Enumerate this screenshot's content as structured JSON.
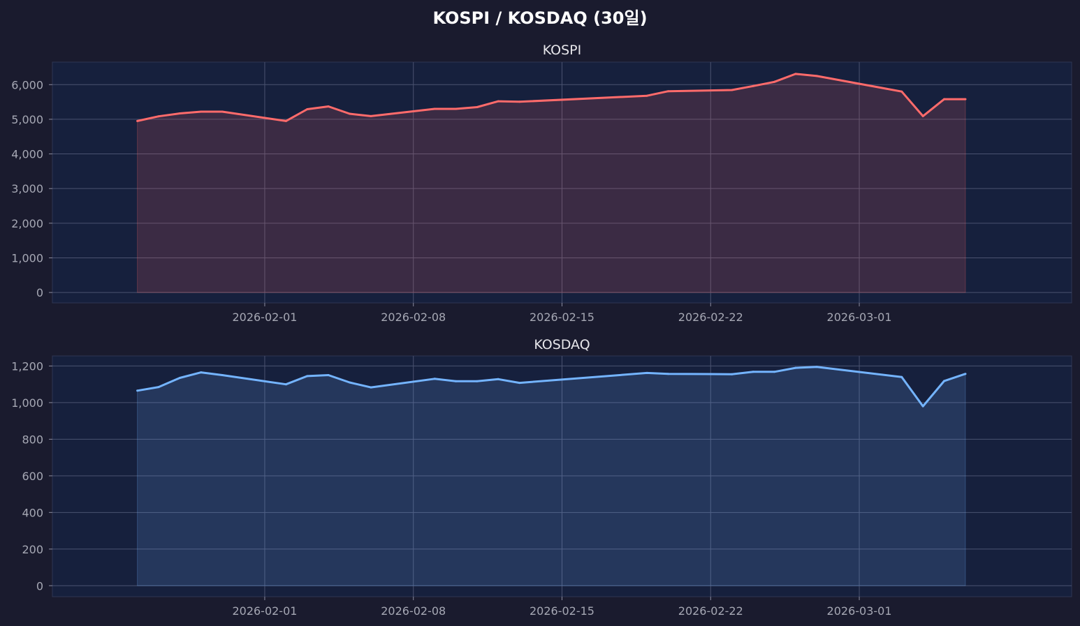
{
  "figure": {
    "title": "KOSPI / KOSDAQ (30일)",
    "background": "#1a1b2e",
    "plot_background": "#16203d"
  },
  "chart_data": [
    {
      "type": "area",
      "title": "KOSPI",
      "color": "#ff6b6b",
      "xlabel": "",
      "ylabel": "",
      "grid": true,
      "xlim": [
        "2026-01-22",
        "2026-03-11"
      ],
      "ylim": [
        -300,
        6650
      ],
      "x_ticks": [
        "2026-02-01",
        "2026-02-08",
        "2026-02-15",
        "2026-02-22",
        "2026-03-01"
      ],
      "y_ticks": [
        0,
        1000,
        2000,
        3000,
        4000,
        5000,
        6000
      ],
      "y_tick_labels": [
        "0",
        "1,000",
        "2,000",
        "3,000",
        "4,000",
        "5,000",
        "6,000"
      ],
      "x": [
        "2026-01-26",
        "2026-01-27",
        "2026-01-28",
        "2026-01-29",
        "2026-01-30",
        "2026-02-02",
        "2026-02-03",
        "2026-02-04",
        "2026-02-05",
        "2026-02-06",
        "2026-02-09",
        "2026-02-10",
        "2026-02-11",
        "2026-02-12",
        "2026-02-13",
        "2026-02-19",
        "2026-02-20",
        "2026-02-23",
        "2026-02-24",
        "2026-02-25",
        "2026-02-26",
        "2026-02-27",
        "2026-03-03",
        "2026-03-04",
        "2026-03-05",
        "2026-03-06"
      ],
      "values": [
        4950,
        5085,
        5170,
        5220,
        5220,
        4950,
        5290,
        5370,
        5160,
        5090,
        5300,
        5300,
        5350,
        5520,
        5505,
        5680,
        5810,
        5845,
        5960,
        6080,
        6310,
        6250,
        5800,
        5090,
        5580,
        5580
      ]
    },
    {
      "type": "area",
      "title": "KOSDAQ",
      "color": "#74b4ff",
      "xlabel": "",
      "ylabel": "",
      "grid": true,
      "xlim": [
        "2026-01-22",
        "2026-03-11"
      ],
      "ylim": [
        -60,
        1255
      ],
      "x_ticks": [
        "2026-02-01",
        "2026-02-08",
        "2026-02-15",
        "2026-02-22",
        "2026-03-01"
      ],
      "y_ticks": [
        0,
        200,
        400,
        600,
        800,
        1000,
        1200
      ],
      "y_tick_labels": [
        "0",
        "200",
        "400",
        "600",
        "800",
        "1,000",
        "1,200"
      ],
      "x": [
        "2026-01-26",
        "2026-01-27",
        "2026-01-28",
        "2026-01-29",
        "2026-01-30",
        "2026-02-02",
        "2026-02-03",
        "2026-02-04",
        "2026-02-05",
        "2026-02-06",
        "2026-02-09",
        "2026-02-10",
        "2026-02-11",
        "2026-02-12",
        "2026-02-13",
        "2026-02-19",
        "2026-02-20",
        "2026-02-23",
        "2026-02-24",
        "2026-02-25",
        "2026-02-26",
        "2026-02-27",
        "2026-03-03",
        "2026-03-04",
        "2026-03-05",
        "2026-03-06"
      ],
      "values": [
        1065,
        1085,
        1135,
        1165,
        1150,
        1100,
        1145,
        1150,
        1110,
        1083,
        1130,
        1117,
        1117,
        1128,
        1108,
        1162,
        1157,
        1155,
        1168,
        1168,
        1190,
        1195,
        1140,
        980,
        1118,
        1157
      ]
    }
  ]
}
